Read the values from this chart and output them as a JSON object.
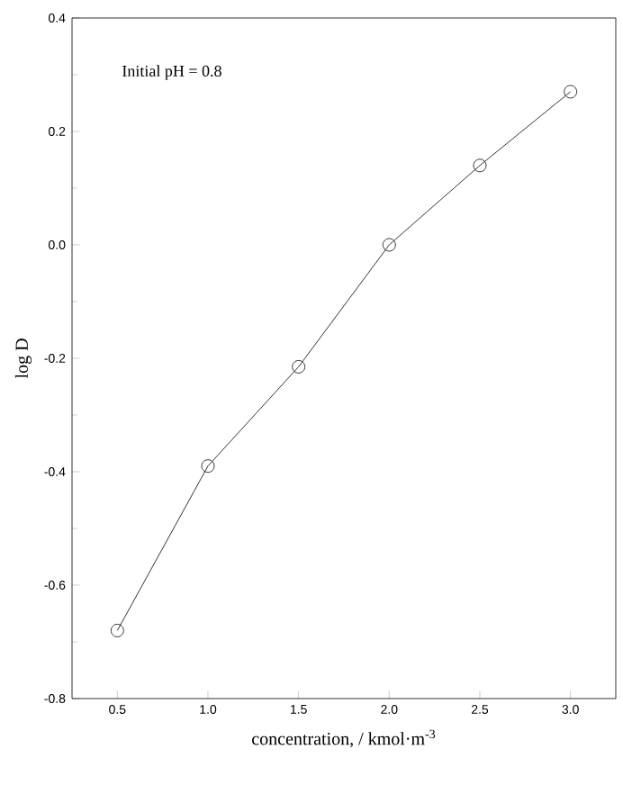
{
  "chart_data": {
    "type": "line",
    "xlabel": "concentration, / kmol·m$^{-3}$",
    "ylabel": "log D",
    "annotations": [
      "Initial pH = 0.8"
    ],
    "x": [
      0.5,
      1.0,
      1.5,
      2.0,
      2.5,
      3.0
    ],
    "values": [
      -0.68,
      -0.39,
      -0.215,
      0.0,
      0.14,
      0.27
    ],
    "color": "#000000",
    "marker": "circle",
    "line_style": "solid",
    "xlim": [
      0.25,
      3.25
    ],
    "xticks": [
      {
        "value": 0.5,
        "label": "0.5"
      },
      {
        "value": 1.0,
        "label": "1.0"
      },
      {
        "value": 1.5,
        "label": "1.5"
      },
      {
        "value": 2.0,
        "label": "2.0"
      },
      {
        "value": 2.5,
        "label": "2.5"
      },
      {
        "value": 3.0,
        "label": "3.0"
      }
    ],
    "ylim": [
      -0.8,
      0.4
    ],
    "yticks": [
      {
        "value": -0.8,
        "label": "-0.8"
      },
      {
        "value": -0.6,
        "label": "-0.6"
      },
      {
        "value": -0.4,
        "label": "-0.4"
      },
      {
        "value": -0.2,
        "label": "-0.2"
      },
      {
        "value": 0.0,
        "label": "0.0"
      },
      {
        "value": 0.2,
        "label": "0.2"
      },
      {
        "value": 0.4,
        "label": "0.4"
      }
    ]
  }
}
